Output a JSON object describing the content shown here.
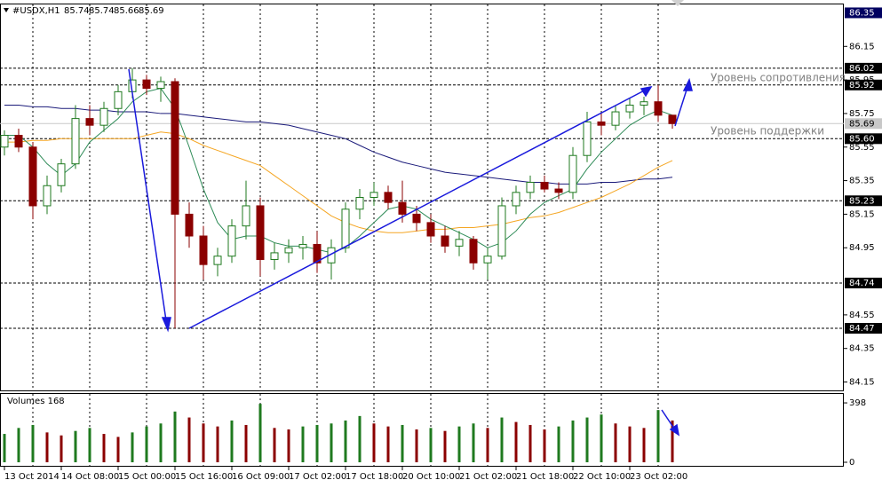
{
  "chart_data": {
    "type": "candlestick",
    "symbol": "#USDX,H1",
    "volume_title": "Volumes 168",
    "annotations": [
      "Уровень сопротивления",
      "Уровень поддержки"
    ],
    "bull_color": "#1f7a1f",
    "bear_color": "#8b0000",
    "categories": [
      "13 Oct 2014",
      null,
      null,
      null,
      "14 Oct 08:00",
      null,
      null,
      null,
      "15 Oct 00:00",
      null,
      null,
      null,
      "15 Oct 16:00",
      null,
      null,
      null,
      "16 Oct 09:00",
      null,
      null,
      null,
      "17 Oct 02:00",
      null,
      null,
      null,
      "17 Oct 18:00",
      null,
      null,
      null,
      "20 Oct 10:00",
      null,
      null,
      null,
      "21 Oct 02:00",
      null,
      null,
      null,
      "21 Oct 18:00",
      null,
      null,
      null,
      "22 Oct 10:00",
      null,
      null,
      null,
      "23 Oct 02:00",
      null,
      null,
      null
    ],
    "open": [
      85.55,
      85.62,
      85.55,
      85.2,
      85.32,
      85.45,
      85.72,
      85.68,
      85.78,
      85.88,
      85.95,
      85.9,
      85.94,
      85.15,
      85.02,
      84.85,
      84.9,
      85.08,
      85.2,
      84.88,
      84.92,
      84.95,
      84.97,
      84.86,
      84.95,
      85.18,
      85.25,
      85.28,
      85.22,
      85.15,
      85.1,
      85.02,
      84.96,
      85.0,
      84.86,
      84.9,
      85.2,
      85.28,
      85.34,
      85.3,
      85.28,
      85.5,
      85.7,
      85.68,
      85.76,
      85.8,
      85.82,
      85.74
    ],
    "high": [
      85.65,
      85.66,
      85.58,
      85.38,
      85.48,
      85.8,
      85.8,
      85.82,
      85.92,
      86.02,
      85.98,
      85.97,
      85.96,
      85.22,
      85.08,
      84.95,
      85.12,
      85.35,
      85.25,
      84.98,
      85.0,
      85.02,
      85.05,
      85.0,
      85.22,
      85.3,
      85.34,
      85.32,
      85.35,
      85.2,
      85.15,
      85.08,
      85.05,
      85.02,
      84.95,
      85.25,
      85.32,
      85.38,
      85.38,
      85.34,
      85.55,
      85.76,
      85.75,
      85.8,
      85.84,
      85.85,
      85.92,
      85.74
    ],
    "low": [
      85.5,
      85.52,
      85.12,
      85.15,
      85.28,
      85.42,
      85.62,
      85.64,
      85.74,
      85.84,
      85.86,
      85.82,
      84.47,
      84.95,
      84.76,
      84.78,
      84.86,
      85.0,
      84.78,
      84.82,
      84.86,
      84.88,
      84.8,
      84.76,
      84.92,
      85.12,
      85.2,
      85.18,
      85.1,
      85.05,
      84.98,
      84.92,
      84.9,
      84.82,
      84.76,
      84.88,
      85.15,
      85.24,
      85.28,
      85.24,
      85.24,
      85.46,
      85.62,
      85.65,
      85.72,
      85.74,
      85.7,
      85.66
    ],
    "close": [
      85.62,
      85.55,
      85.2,
      85.32,
      85.45,
      85.72,
      85.68,
      85.78,
      85.88,
      85.95,
      85.9,
      85.94,
      85.15,
      85.02,
      84.85,
      84.9,
      85.08,
      85.2,
      84.88,
      84.92,
      84.95,
      84.97,
      84.86,
      84.95,
      85.18,
      85.25,
      85.28,
      85.22,
      85.15,
      85.1,
      85.02,
      84.96,
      85.0,
      84.86,
      84.9,
      85.2,
      85.28,
      85.34,
      85.3,
      85.28,
      85.5,
      85.7,
      85.68,
      85.76,
      85.8,
      85.82,
      85.74,
      85.69
    ],
    "lines": [
      {
        "color": "#1a1a7a",
        "values": [
          85.8,
          85.8,
          85.79,
          85.79,
          85.78,
          85.78,
          85.77,
          85.77,
          85.76,
          85.76,
          85.76,
          85.75,
          85.75,
          85.74,
          85.73,
          85.72,
          85.71,
          85.7,
          85.7,
          85.69,
          85.68,
          85.66,
          85.64,
          85.62,
          85.6,
          85.56,
          85.52,
          85.49,
          85.46,
          85.44,
          85.42,
          85.4,
          85.39,
          85.38,
          85.37,
          85.36,
          85.35,
          85.34,
          85.34,
          85.33,
          85.33,
          85.33,
          85.34,
          85.34,
          85.35,
          85.36,
          85.36,
          85.37
        ]
      },
      {
        "color": "#f5a623",
        "values": [
          85.58,
          85.58,
          85.59,
          85.59,
          85.6,
          85.6,
          85.6,
          85.6,
          85.6,
          85.6,
          85.62,
          85.64,
          85.63,
          85.6,
          85.56,
          85.53,
          85.5,
          85.47,
          85.44,
          85.38,
          85.32,
          85.26,
          85.2,
          85.14,
          85.1,
          85.07,
          85.05,
          85.04,
          85.04,
          85.05,
          85.06,
          85.06,
          85.07,
          85.07,
          85.08,
          85.09,
          85.11,
          85.13,
          85.14,
          85.16,
          85.19,
          85.22,
          85.25,
          85.29,
          85.33,
          85.38,
          85.43,
          85.47
        ]
      },
      {
        "color": "#2e8b57",
        "values": [
          85.62,
          85.62,
          85.55,
          85.45,
          85.38,
          85.45,
          85.58,
          85.65,
          85.72,
          85.82,
          85.88,
          85.9,
          85.78,
          85.55,
          85.3,
          85.1,
          85.0,
          85.02,
          85.02,
          84.98,
          84.96,
          84.96,
          84.94,
          84.92,
          84.95,
          85.02,
          85.1,
          85.18,
          85.2,
          85.18,
          85.12,
          85.08,
          85.04,
          85.0,
          84.95,
          84.98,
          85.05,
          85.15,
          85.22,
          85.26,
          85.3,
          85.42,
          85.52,
          85.6,
          85.68,
          85.73,
          85.77,
          85.74
        ]
      }
    ],
    "ylim": [
      84.1,
      86.4
    ],
    "yticks": [
      86.15,
      85.95,
      85.75,
      85.55,
      85.35,
      85.15,
      84.95,
      84.55,
      84.35,
      84.15
    ],
    "levels": [
      86.02,
      85.92,
      {
        "value": 85.6,
        "label": "85.60"
      },
      85.23,
      84.74,
      84.47
    ],
    "level_color": "#000000",
    "top_marker": {
      "value": 86.35,
      "color": "#000060"
    },
    "current_price": {
      "value": 85.69,
      "color": "#c8c8c8"
    },
    "volume": {
      "values": [
        190,
        230,
        250,
        200,
        180,
        210,
        230,
        190,
        170,
        200,
        240,
        260,
        340,
        300,
        260,
        240,
        280,
        250,
        392,
        230,
        220,
        240,
        250,
        260,
        280,
        310,
        260,
        240,
        250,
        220,
        230,
        210,
        240,
        260,
        230,
        300,
        270,
        250,
        220,
        240,
        280,
        300,
        320,
        260,
        240,
        230,
        350,
        280
      ],
      "ylim": [
        0,
        440
      ],
      "yticks": [
        398,
        0
      ]
    }
  }
}
